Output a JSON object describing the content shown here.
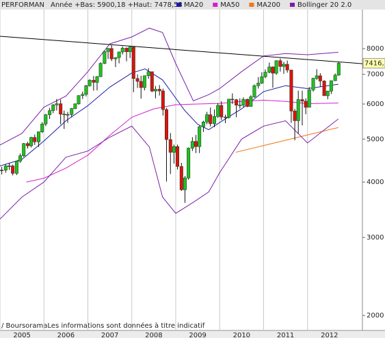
{
  "chart_data": {
    "type": "candlestick",
    "title": "PERFORMAN",
    "subtitle": "Année +Bas: 5900,18 +Haut: 7478,53",
    "footer": "/ BoursoramaLes informations sont données à titre indicatif",
    "price_label": "7416,",
    "log_scale": true,
    "ylim": [
      1850,
      9800
    ],
    "yticks": [
      2000,
      3000,
      4000,
      5000,
      6000,
      7000,
      8000
    ],
    "xlim": [
      2005.0,
      2013.25
    ],
    "xticks": [
      2005,
      2006,
      2007,
      2008,
      2009,
      2010,
      2011,
      2012
    ],
    "up_color": "#22c022",
    "down_color": "#e01010",
    "x": [
      2005.04,
      2005.13,
      2005.21,
      2005.29,
      2005.38,
      2005.46,
      2005.54,
      2005.63,
      2005.71,
      2005.79,
      2005.88,
      2005.96,
      2006.04,
      2006.13,
      2006.21,
      2006.29,
      2006.38,
      2006.46,
      2006.54,
      2006.63,
      2006.71,
      2006.79,
      2006.88,
      2006.96,
      2007.04,
      2007.13,
      2007.21,
      2007.29,
      2007.38,
      2007.46,
      2007.54,
      2007.63,
      2007.71,
      2007.79,
      2007.88,
      2007.96,
      2008.04,
      2008.13,
      2008.21,
      2008.29,
      2008.38,
      2008.46,
      2008.54,
      2008.63,
      2008.71,
      2008.79,
      2008.88,
      2008.96,
      2009.04,
      2009.13,
      2009.21,
      2009.29,
      2009.38,
      2009.46,
      2009.54,
      2009.63,
      2009.71,
      2009.79,
      2009.88,
      2009.96,
      2010.04,
      2010.13,
      2010.21,
      2010.29,
      2010.38,
      2010.46,
      2010.54,
      2010.63,
      2010.71,
      2010.79,
      2010.88,
      2010.96,
      2011.04,
      2011.13,
      2011.21,
      2011.29,
      2011.38,
      2011.46,
      2011.54,
      2011.63,
      2011.71,
      2011.79,
      2011.88,
      2011.96,
      2012.04,
      2012.13,
      2012.21,
      2012.29,
      2012.38,
      2012.46,
      2012.54,
      2012.63,
      2012.71
    ],
    "open": [
      4256,
      4255,
      4350,
      4349,
      4185,
      4460,
      4586,
      4886,
      4829,
      5044,
      4929,
      5193,
      5408,
      5674,
      5796,
      5970,
      6009,
      5692,
      5683,
      5682,
      5859,
      6004,
      6269,
      6309,
      6597,
      6789,
      6715,
      6917,
      7409,
      7883,
      8007,
      7584,
      7638,
      7862,
      8019,
      7871,
      8067,
      6851,
      6748,
      6535,
      6949,
      7097,
      6418,
      6479,
      6422,
      5831,
      4988,
      4669,
      4810,
      4338,
      3843,
      4085,
      4770,
      4941,
      4809,
      5332,
      5465,
      5675,
      5415,
      5625,
      5957,
      5608,
      5598,
      6154,
      6136,
      5964,
      5966,
      6148,
      5925,
      6229,
      6601,
      6688,
      6914,
      7077,
      7273,
      7041,
      7514,
      7294,
      7376,
      7159,
      5785,
      5502,
      6141,
      6089,
      5898,
      6458,
      6856,
      6947,
      6761,
      6264,
      6416,
      6772,
      6971
    ],
    "high": [
      4330,
      4390,
      4420,
      4380,
      4470,
      4640,
      4900,
      4930,
      5060,
      5120,
      5200,
      5460,
      5700,
      5880,
      6000,
      6160,
      6140,
      5800,
      5760,
      5880,
      6020,
      6280,
      6400,
      6630,
      6830,
      6940,
      6940,
      7450,
      7900,
      8030,
      8150,
      7650,
      7880,
      8090,
      8050,
      8100,
      8100,
      7000,
      6950,
      6960,
      7230,
      7100,
      6590,
      6620,
      6500,
      5880,
      5160,
      4860,
      4860,
      4420,
      4130,
      4790,
      5050,
      5110,
      5360,
      5500,
      5760,
      5890,
      5830,
      6030,
      6090,
      5680,
      6160,
      6340,
      6160,
      6180,
      6210,
      6170,
      6280,
      6640,
      6900,
      7080,
      7180,
      7440,
      7300,
      7530,
      7600,
      7470,
      7520,
      7170,
      5850,
      6430,
      6430,
      6180,
      6550,
      6880,
      7190,
      7040,
      6790,
      6430,
      6780,
      7030,
      7478
    ],
    "low": [
      4160,
      4200,
      4260,
      4140,
      4150,
      4420,
      4560,
      4760,
      4790,
      4850,
      4800,
      5160,
      5350,
      5550,
      5720,
      5800,
      5400,
      5270,
      5440,
      5600,
      5840,
      5980,
      6160,
      6240,
      6570,
      6430,
      6440,
      6900,
      7380,
      7580,
      7500,
      7270,
      7410,
      7760,
      7490,
      7620,
      6380,
      6520,
      6170,
      6440,
      6840,
      6380,
      6180,
      6270,
      5650,
      4010,
      4170,
      4400,
      4270,
      3820,
      3590,
      4050,
      4700,
      4650,
      4650,
      5190,
      5400,
      5340,
      5320,
      5580,
      5520,
      5430,
      5560,
      6000,
      5600,
      5860,
      5900,
      5900,
      5920,
      6200,
      6500,
      6660,
      6860,
      7040,
      6530,
      6980,
      7100,
      7020,
      7060,
      5440,
      4970,
      5150,
      5370,
      5690,
      5900,
      6400,
      6800,
      6560,
      6260,
      6150,
      6320,
      6760,
      6950
    ],
    "close": [
      4255,
      4350,
      4349,
      4185,
      4460,
      4586,
      4886,
      4829,
      5044,
      4929,
      5193,
      5408,
      5674,
      5796,
      5970,
      6009,
      5692,
      5683,
      5682,
      5859,
      6004,
      6269,
      6309,
      6597,
      6789,
      6715,
      6917,
      7409,
      7883,
      8007,
      7584,
      7638,
      7862,
      8019,
      7871,
      8067,
      6851,
      6748,
      6535,
      6949,
      7097,
      6418,
      6479,
      6422,
      5831,
      4988,
      4669,
      4810,
      4338,
      3843,
      4085,
      4770,
      4941,
      4809,
      5332,
      5465,
      5675,
      5415,
      5625,
      5957,
      5608,
      5598,
      6154,
      6136,
      5964,
      5966,
      6148,
      5925,
      6229,
      6601,
      6688,
      6914,
      7077,
      7273,
      7041,
      7514,
      7294,
      7376,
      7159,
      5785,
      5502,
      6141,
      6089,
      5898,
      6458,
      6856,
      6947,
      6761,
      6264,
      6416,
      6772,
      6971,
      7416
    ],
    "trendline": {
      "color": "#000000",
      "x": [
        2005.0,
        2013.25
      ],
      "values": [
        8530,
        7397
      ]
    },
    "series": [
      {
        "name": "MA20",
        "color": "#1a1aa8",
        "x": [
          2005.0,
          2005.5,
          2006.0,
          2006.5,
          2007.0,
          2007.5,
          2008.0,
          2008.3,
          2008.7,
          2009.2,
          2009.5,
          2009.75,
          2010.0,
          2010.5,
          2011.0,
          2011.5,
          2012.0,
          2012.7
        ],
        "values": [
          4350,
          4500,
          4950,
          5500,
          5950,
          6550,
          7050,
          7200,
          6800,
          5810,
          5400,
          5250,
          5450,
          5850,
          6400,
          6600,
          6500,
          6650
        ]
      },
      {
        "name": "MA50",
        "color": "#d020d0",
        "x": [
          2005.6,
          2006.0,
          2006.5,
          2007.0,
          2007.5,
          2008.0,
          2008.5,
          2009.0,
          2009.5,
          2010.0,
          2010.5,
          2011.0,
          2011.5,
          2012.0,
          2012.7
        ],
        "values": [
          4000,
          4080,
          4300,
          4600,
          5100,
          5600,
          5850,
          5980,
          6000,
          6020,
          6080,
          6120,
          6080,
          6010,
          6030
        ]
      },
      {
        "name": "MA200",
        "color": "#f07818",
        "x": [
          2010.37,
          2012.7
        ],
        "values": [
          4670,
          5310
        ]
      },
      {
        "name": "Bollinger 20 2.0",
        "color": "#7a1fa8",
        "x": [
          2005.0,
          2005.5,
          2006.0,
          2006.5,
          2007.0,
          2007.5,
          2008.0,
          2008.4,
          2008.7,
          2009.0,
          2009.4,
          2009.75,
          2010.0,
          2010.5,
          2011.0,
          2011.5,
          2012.0,
          2012.7
        ],
        "upper": [
          4850,
          5150,
          5900,
          6250,
          7100,
          8200,
          8500,
          8900,
          8700,
          7400,
          6100,
          6300,
          6500,
          7100,
          7700,
          7800,
          7750,
          7850
        ],
        "lower": [
          3300,
          3700,
          4000,
          4550,
          4700,
          5050,
          5350,
          4800,
          3700,
          3400,
          3600,
          3800,
          4200,
          5000,
          5350,
          5500,
          4900,
          5550
        ]
      }
    ]
  }
}
